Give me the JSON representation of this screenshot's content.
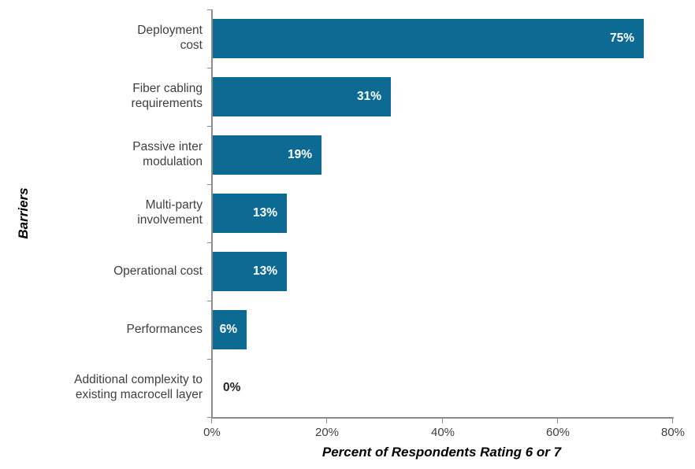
{
  "chart_data": {
    "type": "bar",
    "orientation": "horizontal",
    "title": "",
    "xlabel": "Percent of Respondents Rating 6 or 7",
    "ylabel": "Barriers",
    "categories": [
      "Deployment\ncost",
      "Fiber cabling\nrequirements",
      "Passive inter\nmodulation",
      "Multi-party\ninvolvement",
      "Operational cost",
      "Performances",
      "Additional complexity to\nexisting macrocell layer"
    ],
    "values": [
      75,
      31,
      19,
      13,
      13,
      6,
      0
    ],
    "value_labels": [
      "75%",
      "31%",
      "19%",
      "13%",
      "13%",
      "6%",
      "0%"
    ],
    "xlim": [
      0,
      80
    ],
    "x_ticks": [
      {
        "value": 0,
        "label": "0%"
      },
      {
        "value": 20,
        "label": "20%"
      },
      {
        "value": 40,
        "label": "40%"
      },
      {
        "value": 60,
        "label": "60%"
      },
      {
        "value": 80,
        "label": "80%"
      }
    ],
    "grid": false,
    "legend": false,
    "colors": {
      "bar": "#0c6a93",
      "value_label_inside": "#ffffff",
      "value_label_outside": "#262626",
      "category_text": "#3f3f3f",
      "tick_text": "#3f3f3f",
      "axis": "#8c8c8c",
      "background": "#ffffff"
    }
  }
}
